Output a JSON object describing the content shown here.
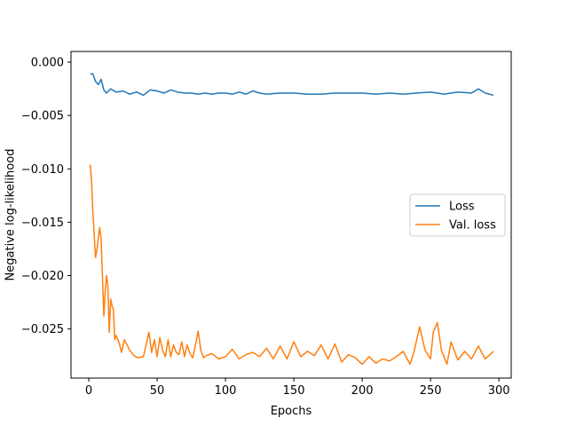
{
  "chart_data": {
    "type": "line",
    "title": "",
    "xlabel": "Epochs",
    "ylabel": "Negative log-likelihood",
    "xlim": [
      -13,
      309
    ],
    "ylim": [
      -0.0296,
      0.001
    ],
    "x_ticks": [
      0,
      50,
      100,
      150,
      200,
      250,
      300
    ],
    "x_tick_labels": [
      "0",
      "50",
      "100",
      "150",
      "200",
      "250",
      "300"
    ],
    "y_ticks": [
      0.0,
      -0.005,
      -0.01,
      -0.015,
      -0.02,
      -0.025
    ],
    "y_tick_labels": [
      "0.000",
      "−0.005",
      "−0.010",
      "−0.015",
      "−0.020",
      "−0.025"
    ],
    "grid": false,
    "legend_position": "center-right",
    "series": [
      {
        "name": "Loss",
        "color": "#1f77b4",
        "x": [
          1,
          3,
          5,
          7,
          9,
          11,
          13,
          16,
          20,
          25,
          30,
          35,
          40,
          45,
          50,
          55,
          60,
          65,
          70,
          75,
          80,
          85,
          90,
          95,
          100,
          105,
          110,
          115,
          120,
          125,
          130,
          140,
          150,
          160,
          170,
          180,
          190,
          200,
          210,
          220,
          230,
          240,
          250,
          260,
          270,
          280,
          285,
          290,
          296
        ],
        "values": [
          -0.0011,
          -0.0011,
          -0.0018,
          -0.0021,
          -0.0016,
          -0.0026,
          -0.0029,
          -0.0025,
          -0.0028,
          -0.0027,
          -0.003,
          -0.0028,
          -0.0031,
          -0.0026,
          -0.0027,
          -0.0029,
          -0.0026,
          -0.0028,
          -0.0029,
          -0.0029,
          -0.003,
          -0.0029,
          -0.003,
          -0.0029,
          -0.0029,
          -0.003,
          -0.0028,
          -0.003,
          -0.0027,
          -0.0029,
          -0.003,
          -0.0029,
          -0.0029,
          -0.003,
          -0.003,
          -0.0029,
          -0.0029,
          -0.0029,
          -0.003,
          -0.0029,
          -0.003,
          -0.0029,
          -0.0028,
          -0.003,
          -0.0028,
          -0.0029,
          -0.0025,
          -0.0029,
          -0.0031
        ]
      },
      {
        "name": "Val. loss",
        "color": "#ff7f0e",
        "x": [
          1,
          2,
          3,
          5,
          6,
          8,
          9,
          10,
          11,
          12,
          13,
          14,
          15,
          16,
          17,
          18,
          19,
          20,
          22,
          24,
          26,
          28,
          30,
          33,
          36,
          40,
          44,
          46,
          48,
          50,
          52,
          54,
          56,
          58,
          60,
          62,
          64,
          66,
          68,
          70,
          72,
          74,
          76,
          78,
          80,
          82,
          84,
          86,
          90,
          95,
          100,
          105,
          110,
          115,
          120,
          125,
          130,
          135,
          140,
          145,
          150,
          155,
          160,
          165,
          170,
          175,
          180,
          185,
          190,
          195,
          200,
          205,
          210,
          215,
          220,
          225,
          230,
          235,
          238,
          242,
          246,
          250,
          252,
          255,
          258,
          262,
          265,
          270,
          275,
          280,
          285,
          290,
          296
        ],
        "values": [
          -0.0096,
          -0.011,
          -0.014,
          -0.0183,
          -0.0175,
          -0.0155,
          -0.0165,
          -0.02,
          -0.0238,
          -0.0215,
          -0.02,
          -0.021,
          -0.0253,
          -0.0222,
          -0.0228,
          -0.0232,
          -0.026,
          -0.0256,
          -0.0262,
          -0.0272,
          -0.026,
          -0.0265,
          -0.027,
          -0.0275,
          -0.0277,
          -0.0276,
          -0.0253,
          -0.0272,
          -0.026,
          -0.0276,
          -0.0258,
          -0.027,
          -0.0276,
          -0.026,
          -0.0276,
          -0.0265,
          -0.0272,
          -0.0274,
          -0.0262,
          -0.0276,
          -0.0265,
          -0.0273,
          -0.0277,
          -0.0265,
          -0.0252,
          -0.027,
          -0.0277,
          -0.0275,
          -0.0273,
          -0.0278,
          -0.0276,
          -0.0269,
          -0.0278,
          -0.0274,
          -0.0272,
          -0.0276,
          -0.0268,
          -0.0278,
          -0.0266,
          -0.0278,
          -0.0262,
          -0.0276,
          -0.0271,
          -0.0275,
          -0.0265,
          -0.0278,
          -0.0264,
          -0.0281,
          -0.0274,
          -0.0277,
          -0.0283,
          -0.0276,
          -0.0282,
          -0.0278,
          -0.028,
          -0.0276,
          -0.0271,
          -0.0283,
          -0.0271,
          -0.0248,
          -0.027,
          -0.0278,
          -0.0253,
          -0.0244,
          -0.027,
          -0.0283,
          -0.0262,
          -0.0279,
          -0.0271,
          -0.0278,
          -0.0266,
          -0.0278,
          -0.0271
        ]
      }
    ]
  }
}
